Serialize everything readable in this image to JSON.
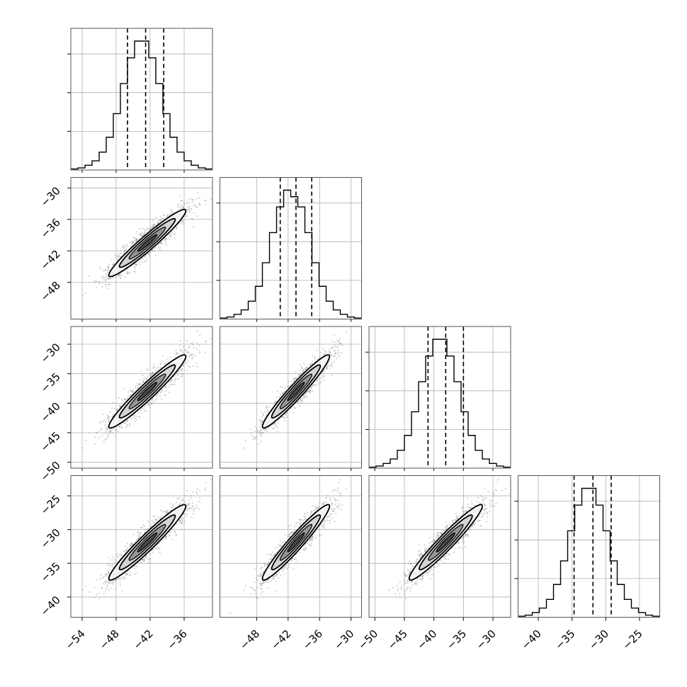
{
  "chart_data": {
    "type": "corner",
    "grid": true,
    "colors": {
      "line": "#000000",
      "grid": "#b0b0b0",
      "scatter": "#808080",
      "frame": "#555555"
    },
    "quantile_style": "dashed",
    "variables": [
      {
        "range": [
          -56,
          -31
        ],
        "ticks": [
          -54,
          -48,
          -42,
          -36
        ],
        "tick_labels": [
          "−54",
          "−48",
          "−42",
          "−36"
        ],
        "quantiles": [
          -46.0,
          -42.8,
          -39.6
        ],
        "hist_edges": [
          -56,
          -54.75,
          -53.5,
          -52.25,
          -51,
          -49.75,
          -48.5,
          -47.25,
          -46,
          -44.75,
          -43.5,
          -42.25,
          -41,
          -39.75,
          -38.5,
          -37.25,
          -36,
          -34.75,
          -33.5,
          -32.25,
          -31
        ],
        "hist_counts": [
          4,
          8,
          18,
          35,
          68,
          125,
          215,
          330,
          428,
          492,
          492,
          428,
          330,
          215,
          125,
          68,
          35,
          18,
          8,
          4
        ]
      },
      {
        "range": [
          -55,
          -28
        ],
        "ticks": [
          -48,
          -42,
          -36,
          -30
        ],
        "tick_labels": [
          "−48",
          "−42",
          "−36",
          "−30"
        ],
        "quantiles": [
          -43.5,
          -40.5,
          -37.5
        ],
        "hist_edges": [
          -55,
          -53.65,
          -52.3,
          -50.95,
          -49.6,
          -48.25,
          -46.9,
          -45.55,
          -44.2,
          -42.85,
          -41.5,
          -40.15,
          -38.8,
          -37.45,
          -36.1,
          -34.75,
          -33.4,
          -32.05,
          -30.7,
          -29.35,
          -28
        ],
        "hist_counts": [
          4,
          8,
          18,
          35,
          68,
          125,
          215,
          330,
          428,
          492,
          467,
          428,
          330,
          215,
          125,
          68,
          35,
          18,
          8,
          4
        ]
      },
      {
        "range": [
          -51,
          -27
        ],
        "ticks": [
          -50,
          -45,
          -40,
          -35,
          -30
        ],
        "tick_labels": [
          "−50",
          "−45",
          "−40",
          "−35",
          "−30"
        ],
        "quantiles": [
          -41.0,
          -38.0,
          -35.0
        ],
        "hist_edges": [
          -51,
          -49.8,
          -48.6,
          -47.4,
          -46.2,
          -45,
          -43.8,
          -42.6,
          -41.4,
          -40.2,
          -39,
          -37.8,
          -36.6,
          -35.4,
          -34.2,
          -33,
          -31.8,
          -30.6,
          -29.4,
          -28.2,
          -27
        ],
        "hist_counts": [
          4,
          8,
          18,
          35,
          68,
          125,
          215,
          330,
          428,
          492,
          492,
          428,
          330,
          215,
          125,
          68,
          35,
          18,
          8,
          4
        ]
      },
      {
        "range": [
          -43,
          -22
        ],
        "ticks": [
          -40,
          -35,
          -30,
          -25
        ],
        "tick_labels": [
          "−40",
          "−35",
          "−30",
          "−25"
        ],
        "quantiles": [
          -34.7,
          -31.9,
          -29.2
        ],
        "hist_edges": [
          -43,
          -41.95,
          -40.9,
          -39.85,
          -38.8,
          -37.75,
          -36.7,
          -35.65,
          -34.6,
          -33.55,
          -32.5,
          -31.45,
          -30.4,
          -29.35,
          -28.3,
          -27.25,
          -26.2,
          -25.15,
          -24.1,
          -23.05,
          -22
        ],
        "hist_counts": [
          4,
          8,
          18,
          35,
          68,
          125,
          215,
          330,
          428,
          492,
          492,
          428,
          330,
          215,
          125,
          68,
          35,
          18,
          8,
          4
        ]
      }
    ],
    "means": [
      -42.5,
      -40.5,
      -38.0,
      -31.9
    ],
    "sigmas": [
      3.4,
      3.2,
      3.1,
      2.8
    ],
    "correlation": 0.96
  }
}
